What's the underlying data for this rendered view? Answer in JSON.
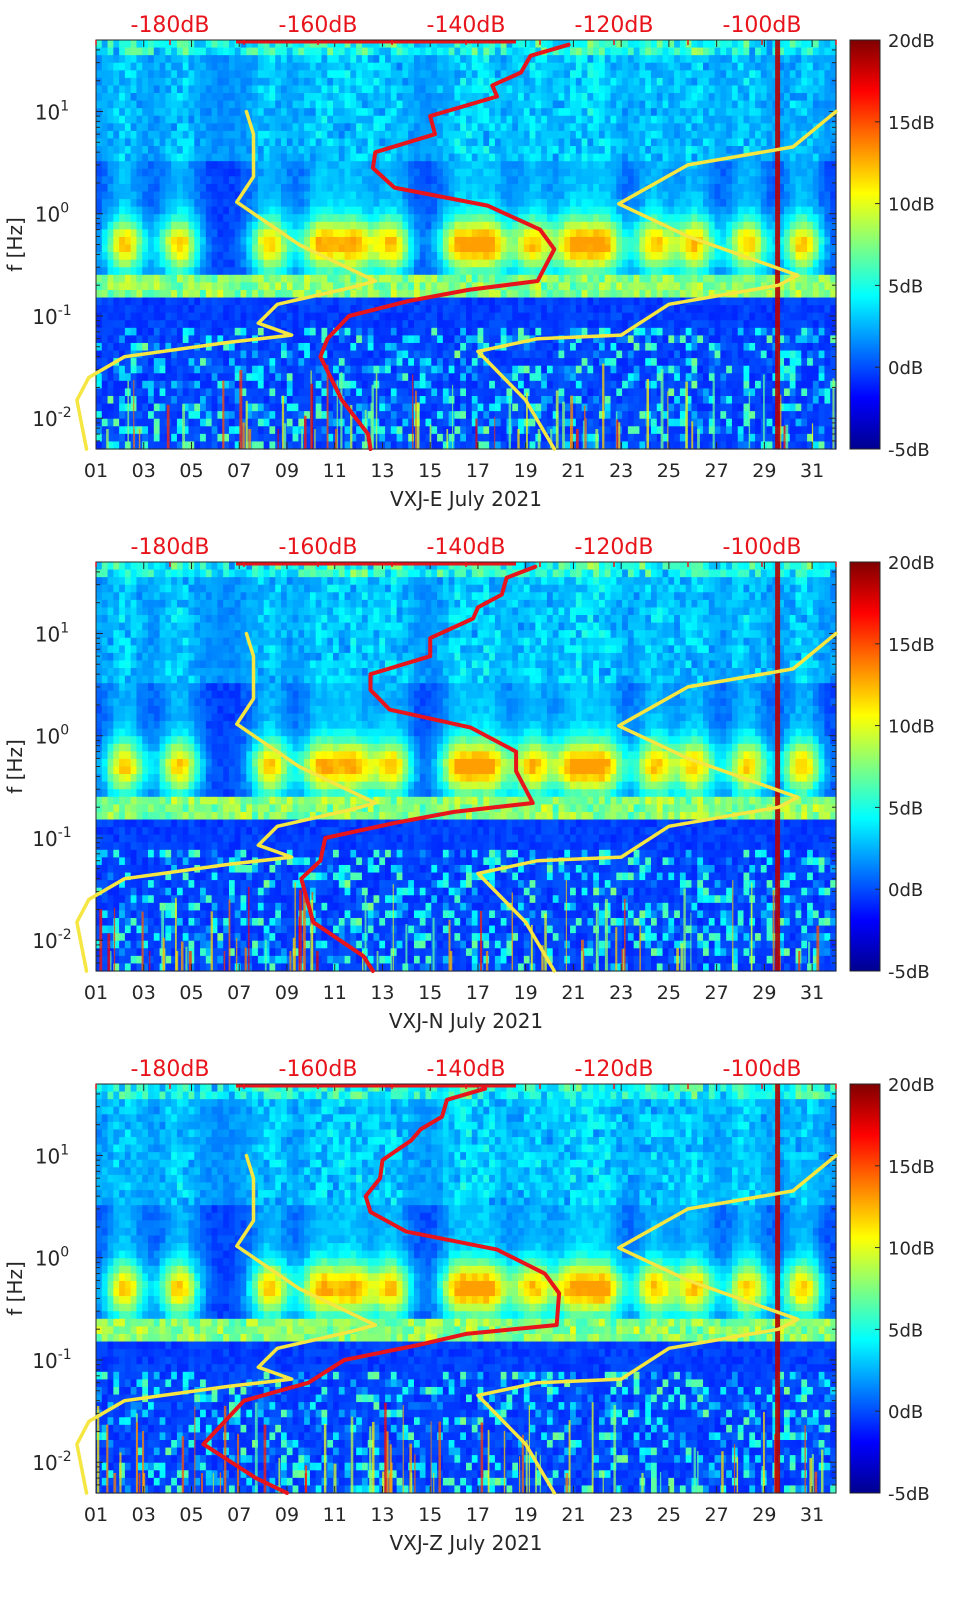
{
  "figure": {
    "colorbar": {
      "tick_labels": [
        "20dB",
        "15dB",
        "10dB",
        "5dB",
        "0dB",
        "-5dB"
      ],
      "tick_values": [
        20,
        15,
        10,
        5,
        0,
        -5
      ],
      "range": [
        -5,
        20
      ],
      "colormap": "jet"
    },
    "top_axis": {
      "tick_labels": [
        "-180dB",
        "-160dB",
        "-140dB",
        "-120dB",
        "-100dB"
      ],
      "tick_values": [
        -180,
        -160,
        -140,
        -120,
        -100
      ],
      "color": "#e8141b"
    },
    "x_tick_labels": [
      "01",
      "03",
      "05",
      "07",
      "09",
      "11",
      "13",
      "15",
      "17",
      "19",
      "21",
      "23",
      "25",
      "27",
      "29",
      "31"
    ],
    "y_label": "f [Hz]",
    "y_tick_labels": [
      {
        "base": "10",
        "exp": "1",
        "value": 10
      },
      {
        "base": "10",
        "exp": "0",
        "value": 1
      },
      {
        "base": "10",
        "exp": "-1",
        "value": 0.1
      },
      {
        "base": "10",
        "exp": "-2",
        "value": 0.01
      }
    ],
    "colors": {
      "noise_model_curve": "#f5e642",
      "psd_curve": "#e8141b"
    }
  },
  "chart_data": [
    {
      "type": "heatmap",
      "title": "",
      "xlabel": "VXJ-E July 2021",
      "ylabel": "f [Hz]",
      "xlim": [
        1,
        32
      ],
      "ylim": [
        0.005,
        50
      ],
      "yscale": "log",
      "secondary_x": {
        "range_dB": [
          -190,
          -90
        ],
        "ticks": [
          -180,
          -160,
          -140,
          -120,
          -100
        ]
      },
      "series": [
        {
          "style": "yellow line (left)",
          "points": [
            [
              7.3,
              10
            ],
            [
              7.6,
              6
            ],
            [
              7.6,
              2.3
            ],
            [
              6.9,
              1.3
            ],
            [
              9.5,
              0.5
            ],
            [
              12.7,
              0.22
            ],
            [
              11.7,
              0.19
            ],
            [
              8.6,
              0.13
            ],
            [
              7.8,
              0.085
            ],
            [
              9.2,
              0.065
            ],
            [
              6.5,
              0.055
            ],
            [
              2.2,
              0.04
            ],
            [
              0.7,
              0.025
            ],
            [
              0.2,
              0.015
            ],
            [
              0.6,
              0.005
            ]
          ]
        },
        {
          "style": "yellow line (right)",
          "points": [
            [
              32,
              10
            ],
            [
              30.2,
              4.5
            ],
            [
              25.8,
              3
            ],
            [
              22.9,
              1.25
            ],
            [
              25.8,
              0.6
            ],
            [
              30.4,
              0.25
            ],
            [
              29.6,
              0.2
            ],
            [
              25,
              0.13
            ],
            [
              23,
              0.065
            ],
            [
              19.5,
              0.06
            ],
            [
              17,
              0.045
            ],
            [
              19,
              0.015
            ],
            [
              20.2,
              0.005
            ]
          ]
        },
        {
          "style": "red line",
          "points": [
            [
              20.8,
              45
            ],
            [
              19.2,
              35
            ],
            [
              18.8,
              24
            ],
            [
              17.6,
              18
            ],
            [
              17.8,
              14
            ],
            [
              15,
              9
            ],
            [
              15.2,
              6
            ],
            [
              12.7,
              4
            ],
            [
              12.6,
              2.8
            ],
            [
              13.5,
              1.8
            ],
            [
              17.4,
              1.2
            ],
            [
              19.6,
              0.7
            ],
            [
              20.2,
              0.45
            ],
            [
              19.5,
              0.22
            ],
            [
              16.6,
              0.18
            ],
            [
              14.1,
              0.14
            ],
            [
              11.6,
              0.1
            ],
            [
              10.7,
              0.06
            ],
            [
              10.4,
              0.04
            ],
            [
              11.3,
              0.015
            ],
            [
              12.4,
              0.007
            ],
            [
              12.5,
              0.005
            ]
          ]
        }
      ]
    },
    {
      "type": "heatmap",
      "title": "",
      "xlabel": "VXJ-N July 2021",
      "ylabel": "f [Hz]",
      "xlim": [
        1,
        32
      ],
      "ylim": [
        0.005,
        50
      ],
      "yscale": "log",
      "secondary_x": {
        "range_dB": [
          -190,
          -90
        ],
        "ticks": [
          -180,
          -160,
          -140,
          -120,
          -100
        ]
      },
      "series": [
        {
          "style": "yellow line (left)",
          "points": [
            [
              7.3,
              10
            ],
            [
              7.6,
              6
            ],
            [
              7.6,
              2.3
            ],
            [
              6.9,
              1.3
            ],
            [
              9.5,
              0.5
            ],
            [
              12.7,
              0.22
            ],
            [
              11.7,
              0.19
            ],
            [
              8.6,
              0.13
            ],
            [
              7.8,
              0.085
            ],
            [
              9.2,
              0.065
            ],
            [
              6.5,
              0.055
            ],
            [
              2.2,
              0.04
            ],
            [
              0.7,
              0.025
            ],
            [
              0.2,
              0.015
            ],
            [
              0.6,
              0.005
            ]
          ]
        },
        {
          "style": "yellow line (right)",
          "points": [
            [
              32,
              10
            ],
            [
              30.2,
              4.5
            ],
            [
              25.8,
              3
            ],
            [
              22.9,
              1.25
            ],
            [
              25.8,
              0.6
            ],
            [
              30.4,
              0.25
            ],
            [
              29.6,
              0.2
            ],
            [
              25,
              0.13
            ],
            [
              23,
              0.065
            ],
            [
              19.5,
              0.06
            ],
            [
              17,
              0.045
            ],
            [
              19,
              0.015
            ],
            [
              20.2,
              0.005
            ]
          ]
        },
        {
          "style": "red line",
          "points": [
            [
              19.4,
              45
            ],
            [
              18.2,
              35
            ],
            [
              18,
              24
            ],
            [
              17,
              18
            ],
            [
              16.8,
              14
            ],
            [
              15,
              9
            ],
            [
              15,
              6
            ],
            [
              12.5,
              4
            ],
            [
              12.5,
              2.8
            ],
            [
              13.3,
              1.8
            ],
            [
              16.7,
              1.2
            ],
            [
              18.6,
              0.7
            ],
            [
              18.6,
              0.45
            ],
            [
              19.3,
              0.22
            ],
            [
              16,
              0.18
            ],
            [
              13.5,
              0.14
            ],
            [
              10.6,
              0.1
            ],
            [
              10.4,
              0.06
            ],
            [
              9.6,
              0.04
            ],
            [
              10.1,
              0.015
            ],
            [
              12.2,
              0.007
            ],
            [
              12.6,
              0.005
            ]
          ]
        }
      ]
    },
    {
      "type": "heatmap",
      "title": "",
      "xlabel": "VXJ-Z July 2021",
      "ylabel": "f [Hz]",
      "xlim": [
        1,
        32
      ],
      "ylim": [
        0.005,
        50
      ],
      "yscale": "log",
      "secondary_x": {
        "range_dB": [
          -190,
          -90
        ],
        "ticks": [
          -180,
          -160,
          -140,
          -120,
          -100
        ]
      },
      "series": [
        {
          "style": "yellow line (left)",
          "points": [
            [
              7.3,
              10
            ],
            [
              7.6,
              6
            ],
            [
              7.6,
              2.3
            ],
            [
              6.9,
              1.3
            ],
            [
              9.5,
              0.5
            ],
            [
              12.7,
              0.22
            ],
            [
              11.7,
              0.19
            ],
            [
              8.6,
              0.13
            ],
            [
              7.8,
              0.085
            ],
            [
              9.2,
              0.065
            ],
            [
              6.5,
              0.055
            ],
            [
              2.2,
              0.04
            ],
            [
              0.7,
              0.025
            ],
            [
              0.2,
              0.015
            ],
            [
              0.6,
              0.005
            ]
          ]
        },
        {
          "style": "yellow line (right)",
          "points": [
            [
              32,
              10
            ],
            [
              30.2,
              4.5
            ],
            [
              25.8,
              3
            ],
            [
              22.9,
              1.25
            ],
            [
              25.8,
              0.6
            ],
            [
              30.4,
              0.25
            ],
            [
              29.6,
              0.2
            ],
            [
              25,
              0.13
            ],
            [
              23,
              0.065
            ],
            [
              19.5,
              0.06
            ],
            [
              17,
              0.045
            ],
            [
              19,
              0.015
            ],
            [
              20.2,
              0.005
            ]
          ]
        },
        {
          "style": "red line",
          "points": [
            [
              17.3,
              45
            ],
            [
              15.7,
              35
            ],
            [
              15.5,
              24
            ],
            [
              14.6,
              18
            ],
            [
              14.2,
              14
            ],
            [
              13,
              9
            ],
            [
              12.9,
              6
            ],
            [
              12.3,
              4
            ],
            [
              12.5,
              2.8
            ],
            [
              14,
              1.8
            ],
            [
              17.8,
              1.2
            ],
            [
              19.8,
              0.7
            ],
            [
              20.4,
              0.45
            ],
            [
              20.3,
              0.22
            ],
            [
              16.5,
              0.18
            ],
            [
              14.5,
              0.14
            ],
            [
              11.4,
              0.1
            ],
            [
              9.9,
              0.06
            ],
            [
              7.2,
              0.04
            ],
            [
              5.5,
              0.015
            ],
            [
              7.7,
              0.007
            ],
            [
              9,
              0.005
            ]
          ]
        }
      ]
    }
  ]
}
